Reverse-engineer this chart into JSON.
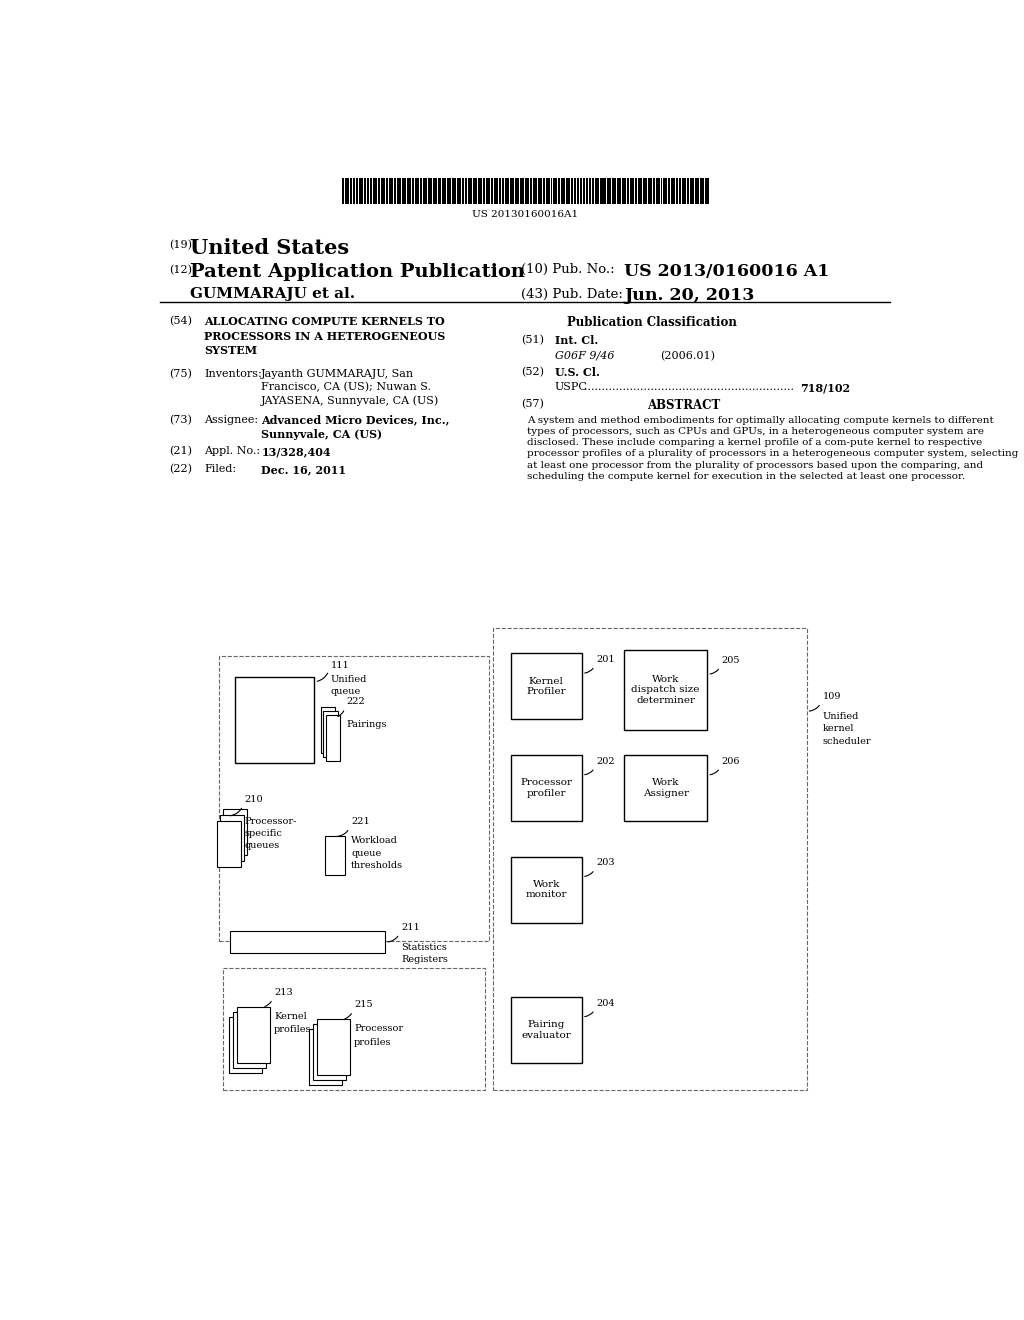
{
  "bg_color": "#ffffff",
  "barcode_text": "US 20130160016A1",
  "title_19": "(19)",
  "title_us": "United States",
  "title_12": "(12)",
  "title_pat": "Patent Application Publication",
  "title_10": "(10) Pub. No.:",
  "pub_no": "US 2013/0160016 A1",
  "title_gummaraju": "GUMMARAJU et al.",
  "title_43": "(43) Pub. Date:",
  "pub_date": "Jun. 20, 2013",
  "field_54_label": "(54)",
  "field_54_title": "ALLOCATING COMPUTE KERNELS TO\nPROCESSORS IN A HETEROGENEOUS\nSYSTEM",
  "field_75_label": "(75)",
  "field_75_title": "Inventors:",
  "field_75_value": "Jayanth GUMMARAJU, San\nFrancisco, CA (US); Nuwan S.\nJAYASENA, Sunnyvale, CA (US)",
  "field_73_label": "(73)",
  "field_73_title": "Assignee:",
  "field_73_value": "Advanced Micro Devices, Inc.,\nSunnyvale, CA (US)",
  "field_21_label": "(21)",
  "field_21_title": "Appl. No.:",
  "field_21_value": "13/328,404",
  "field_22_label": "(22)",
  "field_22_title": "Filed:",
  "field_22_value": "Dec. 16, 2011",
  "pub_class_title": "Publication Classification",
  "field_51_label": "(51)",
  "field_51_title": "Int. Cl.",
  "field_51_class": "G06F 9/46",
  "field_51_year": "(2006.01)",
  "field_52_label": "(52)",
  "field_52_title": "U.S. Cl.",
  "field_52_uspc": "USPC",
  "field_52_dots": "............................................................",
  "field_52_value": "718/102",
  "field_57_label": "(57)",
  "field_57_title": "ABSTRACT",
  "abstract_text": "A system and method embodiments for optimally allocating compute kernels to different types of processors, such as CPUs and GPUs, in a heterogeneous computer system are disclosed. These include comparing a kernel profile of a com-pute kernel to respective processor profiles of a plurality of processors in a heterogeneous computer system, selecting at least one processor from the plurality of processors based upon the comparing, and scheduling the compute kernel for execution in the selected at least one processor."
}
